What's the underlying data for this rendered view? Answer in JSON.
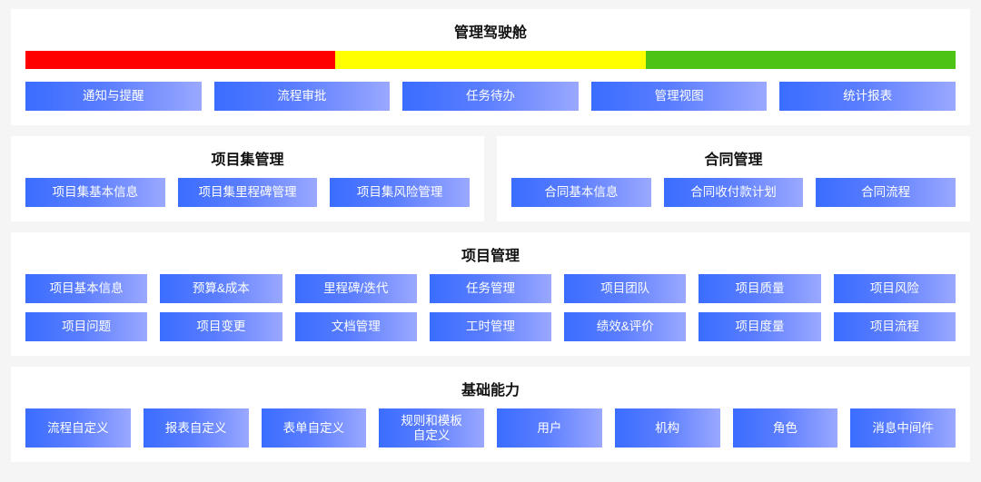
{
  "colors": {
    "panel_bg": "#ffffff",
    "page_bg": "#f5f5f5",
    "btn_grad_start": "#3a6dff",
    "btn_grad_mid": "#5a7dff",
    "btn_grad_end": "#9aa8ff",
    "btn_text": "#ffffff",
    "title_color": "#111111"
  },
  "top": {
    "title": "管理驾驶舱",
    "status_colors": [
      "#ff0000",
      "#ffff00",
      "#4dc413"
    ],
    "buttons": [
      "通知与提醒",
      "流程审批",
      "任务待办",
      "管理视图",
      "统计报表"
    ]
  },
  "row2": {
    "left": {
      "title": "项目集管理",
      "buttons": [
        "项目集基本信息",
        "项目集里程碑管理",
        "项目集风险管理"
      ]
    },
    "right": {
      "title": "合同管理",
      "buttons": [
        "合同基本信息",
        "合同收付款计划",
        "合同流程"
      ]
    }
  },
  "row3": {
    "title": "项目管理",
    "r1": [
      "项目基本信息",
      "预算&成本",
      "里程碑/迭代",
      "任务管理",
      "项目团队",
      "项目质量",
      "项目风险"
    ],
    "r2": [
      "项目问题",
      "项目变更",
      "文档管理",
      "工时管理",
      "绩效&评价",
      "项目度量",
      "项目流程"
    ]
  },
  "row4": {
    "title": "基础能力",
    "buttons": [
      "流程自定义",
      "报表自定义",
      "表单自定义",
      "规则和模板\n自定义",
      "用户",
      "机构",
      "角色",
      "消息中间件"
    ]
  }
}
